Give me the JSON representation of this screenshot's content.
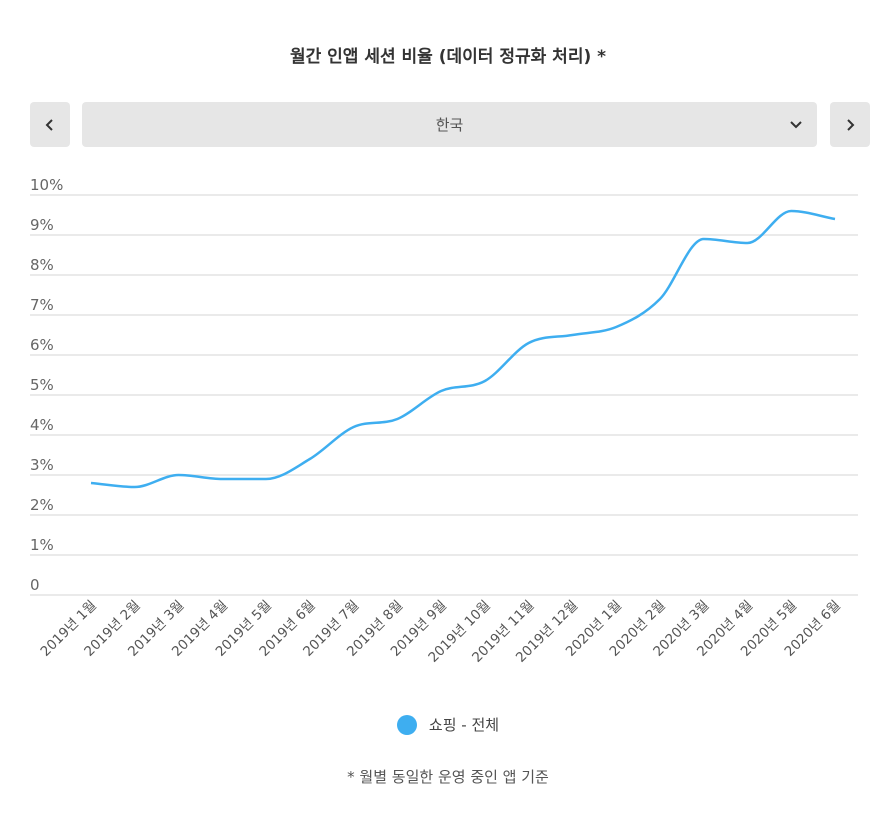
{
  "title": "월간 인앱 세션 비율 (데이터 정규화 처리) *",
  "nav": {
    "prev_icon": "chevron-left-icon",
    "next_icon": "chevron-right-icon",
    "dropdown_icon": "chevron-down-icon"
  },
  "region_select": {
    "value": "한국"
  },
  "footnote": "* 월별 동일한 운영 중인 앱 기준",
  "chart_data": {
    "type": "line",
    "title": "월간 인앱 세션 비율 (데이터 정규화 처리) *",
    "categories": [
      "2019년 1월",
      "2019년 2월",
      "2019년 3월",
      "2019년 4월",
      "2019년 5월",
      "2019년 6월",
      "2019년 7월",
      "2019년 8월",
      "2019년 9월",
      "2019년 10월",
      "2019년 11월",
      "2019년 12월",
      "2020년 1월",
      "2020년 2월",
      "2020년 3월",
      "2020년 4월",
      "2020년 5월",
      "2020년 6월"
    ],
    "series": [
      {
        "name": "쇼핑 - 전체",
        "color": "#3eaef0",
        "values": [
          2.8,
          2.7,
          3.0,
          2.9,
          2.9,
          3.4,
          4.2,
          4.4,
          5.1,
          5.35,
          6.3,
          6.5,
          6.7,
          7.4,
          8.9,
          8.8,
          9.6,
          9.4
        ]
      }
    ],
    "yticks": [
      "0",
      "1%",
      "2%",
      "3%",
      "4%",
      "5%",
      "6%",
      "7%",
      "8%",
      "9%",
      "10%"
    ],
    "ylim": [
      0,
      10
    ],
    "yunit": "%",
    "grid": true,
    "legend": "bottom"
  }
}
